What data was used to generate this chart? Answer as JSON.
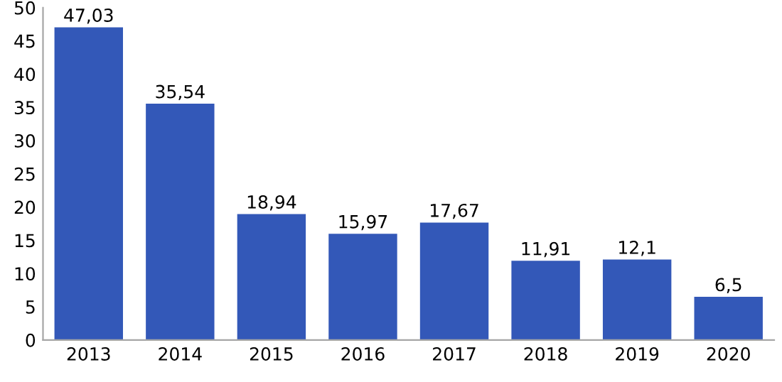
{
  "chart_data": {
    "type": "bar",
    "categories": [
      "2013",
      "2014",
      "2015",
      "2016",
      "2017",
      "2018",
      "2019",
      "2020"
    ],
    "values": [
      47.03,
      35.54,
      18.94,
      15.97,
      17.67,
      11.91,
      12.1,
      6.5
    ],
    "value_labels": [
      "47,03",
      "35,54",
      "18,94",
      "15,97",
      "17,67",
      "11,91",
      "12,1",
      "6,5"
    ],
    "color": "#3358b8",
    "ylim": [
      0,
      50
    ],
    "yticks": [
      0,
      5,
      10,
      15,
      20,
      25,
      30,
      35,
      40,
      45,
      50
    ],
    "grid": false,
    "legend": false
  }
}
